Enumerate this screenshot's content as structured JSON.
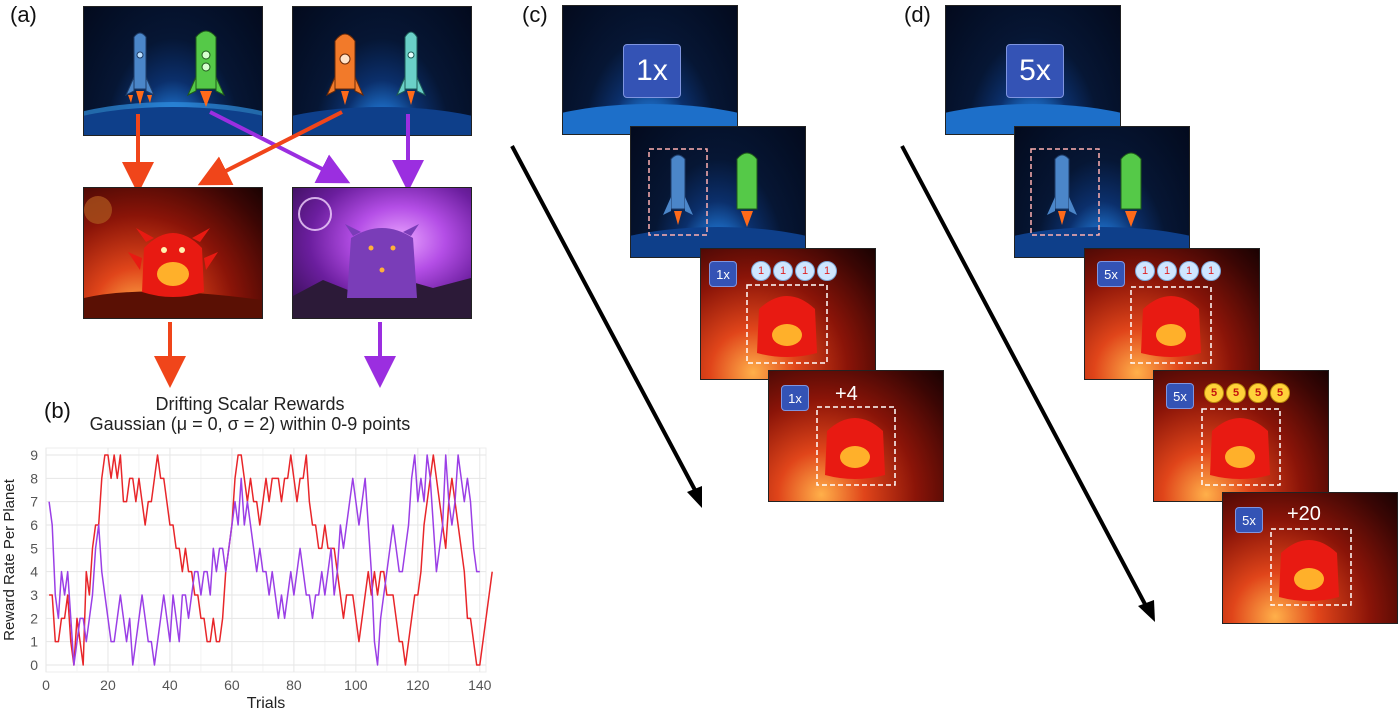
{
  "panels": {
    "a": "(a)",
    "b": "(b)",
    "c": "(c)",
    "d": "(d)"
  },
  "colors": {
    "red_planet": "#f0451a",
    "purple_planet": "#9b2ee0",
    "arrow_black": "#000000",
    "badge": "#3453b5",
    "series_red": "#e8262a",
    "series_purple": "#9b3fe6"
  },
  "panel_c": {
    "multiplier_big": "1x",
    "badge_small": "1x",
    "feedback": "+4",
    "tokens": [
      "1",
      "1",
      "1",
      "1"
    ]
  },
  "panel_d": {
    "multiplier_big": "5x",
    "badge_small": "5x",
    "feedback": "+20",
    "tokens": [
      "5",
      "5",
      "5",
      "5"
    ]
  },
  "chart_data": {
    "type": "line",
    "title": "Drifting Scalar Rewards",
    "subtitle": "Gaussian (μ = 0, σ = 2) within 0-9 points",
    "xlabel": "Trials",
    "ylabel": "Reward Rate Per Planet",
    "xlim": [
      0,
      142
    ],
    "ylim": [
      0,
      9
    ],
    "xticks": [
      0,
      20,
      40,
      60,
      80,
      100,
      120,
      140
    ],
    "yticks": [
      0,
      1,
      2,
      3,
      4,
      5,
      6,
      7,
      8,
      9
    ],
    "x_start": 1,
    "grid": true,
    "series": [
      {
        "name": "red planet",
        "color": "#e8262a",
        "values": [
          3,
          3,
          1,
          1,
          2,
          2,
          3,
          1,
          0,
          2,
          1,
          0,
          4,
          3,
          5,
          6,
          6,
          8,
          9,
          9,
          8,
          9,
          8,
          9,
          7,
          7,
          8,
          8,
          7,
          8,
          7,
          6,
          7,
          7,
          8,
          9,
          8,
          8,
          7,
          6,
          6,
          5,
          5,
          4,
          5,
          4,
          4,
          3,
          3,
          2,
          2,
          1,
          1,
          2,
          1,
          1,
          2,
          4,
          5,
          6,
          8,
          9,
          9,
          8,
          7,
          8,
          7,
          7,
          6,
          7,
          8,
          7,
          8,
          8,
          8,
          7,
          8,
          8,
          9,
          8,
          7,
          8,
          8,
          9,
          7,
          6,
          6,
          5,
          5,
          6,
          5,
          5,
          5,
          4,
          3,
          2,
          3,
          3,
          3,
          2,
          1,
          2,
          3,
          4,
          3,
          4,
          3,
          4,
          4,
          3,
          3,
          3,
          2,
          1,
          1,
          0,
          1,
          2,
          3,
          3,
          4,
          6,
          7,
          8,
          9,
          8,
          7,
          6,
          5,
          7,
          8,
          7,
          6,
          5,
          4,
          2,
          2,
          1,
          0,
          0,
          1,
          2,
          3,
          4
        ]
      },
      {
        "name": "purple planet",
        "color": "#9b3fe6",
        "values": [
          7,
          6,
          3,
          2,
          4,
          3,
          4,
          2,
          0,
          1,
          2,
          2,
          1,
          2,
          3,
          5,
          6,
          4,
          3,
          2,
          1,
          1,
          2,
          3,
          2,
          1,
          2,
          0,
          1,
          2,
          3,
          2,
          1,
          1,
          0,
          1,
          2,
          3,
          2,
          1,
          3,
          2,
          1,
          3,
          3,
          2,
          3,
          4,
          4,
          3,
          4,
          4,
          3,
          5,
          4,
          5,
          5,
          4,
          5,
          6,
          7,
          6,
          8,
          6,
          7,
          6,
          5,
          4,
          5,
          4,
          4,
          3,
          4,
          3,
          2,
          3,
          2,
          3,
          4,
          3,
          4,
          5,
          4,
          3,
          3,
          2,
          3,
          3,
          4,
          3,
          4,
          5,
          3,
          4,
          6,
          5,
          6,
          7,
          8,
          7,
          6,
          7,
          8,
          6,
          4,
          1,
          0,
          2,
          3,
          4,
          5,
          6,
          5,
          4,
          4,
          5,
          6,
          8,
          9,
          7,
          8,
          7,
          9,
          8,
          6,
          4,
          5,
          6,
          9,
          7,
          6,
          7,
          9,
          8,
          7,
          8,
          7,
          5,
          4,
          4
        ]
      }
    ]
  }
}
